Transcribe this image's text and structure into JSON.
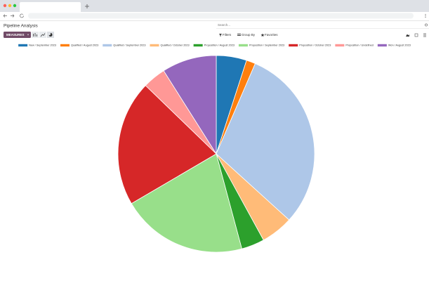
{
  "header": {
    "title": "Pipeline Analysis",
    "search_placeholder": "Search..."
  },
  "toolbar": {
    "measures": "MEASURES",
    "filters": "Filters",
    "group_by": "Group By",
    "favorites": "Favorites"
  },
  "chart_data": {
    "type": "pie",
    "categories": [
      "New / September 2023",
      "Qualified / August 2023",
      "Qualified / September 2023",
      "Qualified / October 2023",
      "Proposition / August 2023",
      "Proposition / September 2023",
      "Proposition / October 2023",
      "Proposition / Undefined",
      "Won / August 2023"
    ],
    "values": [
      5,
      1.5,
      30.3,
      5.3,
      3.8,
      20.8,
      20.7,
      3.8,
      9
    ],
    "colors": [
      "#1f77b4",
      "#ff7f0e",
      "#aec7e8",
      "#ffbb78",
      "#2ca02c",
      "#98df8a",
      "#d62728",
      "#ff9896",
      "#9467bd"
    ],
    "legend": "top"
  }
}
